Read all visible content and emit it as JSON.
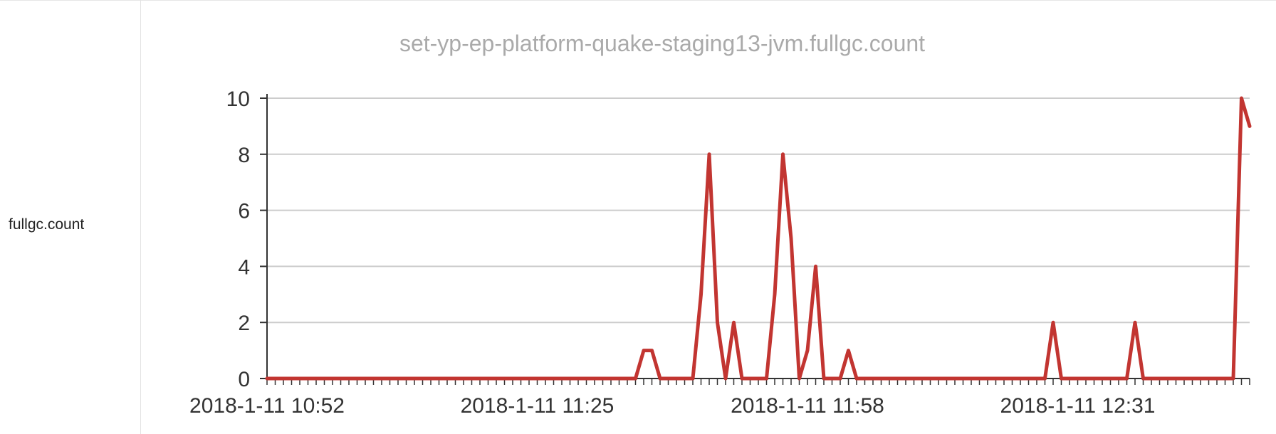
{
  "row": {
    "label": "fullgc.count"
  },
  "chart_data": {
    "type": "line",
    "title": "set-yp-ep-platform-quake-staging13-jvm.fullgc.count",
    "xlabel": "",
    "ylabel": "",
    "ylim": [
      0,
      10
    ],
    "yticks": [
      "0",
      "2",
      "4",
      "6",
      "8",
      "10"
    ],
    "xtick_labels": [
      "2018-1-11 10:52",
      "2018-1-11 11:25",
      "2018-1-11 11:58",
      "2018-1-11 12:31"
    ],
    "x_unit": "minute index (0 = 2018-1-11 10:52)",
    "x_range": [
      0,
      120
    ],
    "grid": true,
    "legend": "none",
    "series_color": "#c23531",
    "series": [
      {
        "x": [
          0,
          1,
          2,
          3,
          4,
          5,
          6,
          7,
          8,
          9,
          10,
          11,
          12,
          13,
          14,
          15,
          16,
          17,
          18,
          19,
          20,
          21,
          22,
          23,
          24,
          25,
          26,
          27,
          28,
          29,
          30,
          31,
          32,
          33,
          34,
          35,
          36,
          37,
          38,
          39,
          40,
          41,
          42,
          43,
          44,
          45,
          46,
          47,
          48,
          49,
          50,
          51,
          52,
          53,
          54,
          55,
          56,
          57,
          58,
          59,
          60,
          61,
          62,
          63,
          64,
          65,
          66,
          67,
          68,
          69,
          70,
          71,
          72,
          73,
          74,
          75,
          76,
          77,
          78,
          79,
          80,
          81,
          82,
          83,
          84,
          85,
          86,
          87,
          88,
          89,
          90,
          91,
          92,
          93,
          94,
          95,
          96,
          97,
          98,
          99,
          100,
          101,
          102,
          103,
          104,
          105,
          106,
          107,
          108,
          109,
          110,
          111,
          112,
          113,
          114,
          115,
          116,
          117,
          118,
          119,
          120
        ],
        "values": [
          0,
          0,
          0,
          0,
          0,
          0,
          0,
          0,
          0,
          0,
          0,
          0,
          0,
          0,
          0,
          0,
          0,
          0,
          0,
          0,
          0,
          0,
          0,
          0,
          0,
          0,
          0,
          0,
          0,
          0,
          0,
          0,
          0,
          0,
          0,
          0,
          0,
          0,
          0,
          0,
          0,
          0,
          0,
          0,
          0,
          0,
          1,
          1,
          0,
          0,
          0,
          0,
          0,
          3,
          8,
          2,
          0,
          2,
          0,
          0,
          0,
          0,
          3,
          8,
          5,
          0,
          1,
          4,
          0,
          0,
          0,
          1,
          0,
          0,
          0,
          0,
          0,
          0,
          0,
          0,
          0,
          0,
          0,
          0,
          0,
          0,
          0,
          0,
          0,
          0,
          0,
          0,
          0,
          0,
          0,
          0,
          2,
          0,
          0,
          0,
          0,
          0,
          0,
          0,
          0,
          0,
          2,
          0,
          0,
          0,
          0,
          0,
          0,
          0,
          0,
          0,
          0,
          0,
          0,
          10,
          9
        ]
      }
    ]
  }
}
